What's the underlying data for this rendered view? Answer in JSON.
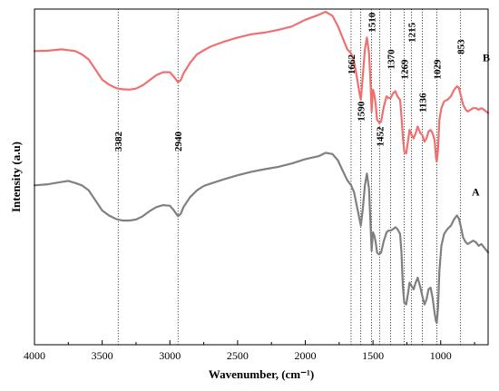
{
  "chart_data": {
    "type": "line",
    "xlabel": "Wavenumber, (cm⁻¹)",
    "ylabel": "Intensity (a.u)",
    "xlim": [
      4000,
      650
    ],
    "x_reversed": true,
    "ylim": [
      0,
      100
    ],
    "x_ticks": [
      "4000",
      "3500",
      "3000",
      "2500",
      "2000",
      "1500",
      "1000"
    ],
    "x_tick_values": [
      4000,
      3500,
      3000,
      2500,
      2000,
      1500,
      1000
    ],
    "y_ticks_shown": false,
    "grid": false,
    "reference_lines": [
      3382,
      2940,
      1662,
      1590,
      1510,
      1452,
      1370,
      1269,
      1215,
      1136,
      1029,
      853
    ],
    "series": [
      {
        "name": "B",
        "color": "#f07070",
        "points": [
          [
            4000,
            87.5
          ],
          [
            3900,
            87.6
          ],
          [
            3800,
            88.0
          ],
          [
            3700,
            87.5
          ],
          [
            3650,
            86.5
          ],
          [
            3600,
            85.0
          ],
          [
            3550,
            82.0
          ],
          [
            3500,
            79.0
          ],
          [
            3450,
            77.5
          ],
          [
            3400,
            76.5
          ],
          [
            3382,
            76.3
          ],
          [
            3350,
            76.1
          ],
          [
            3300,
            76.0
          ],
          [
            3250,
            76.3
          ],
          [
            3200,
            77.3
          ],
          [
            3150,
            78.8
          ],
          [
            3100,
            80.3
          ],
          [
            3050,
            81.2
          ],
          [
            3000,
            81.2
          ],
          [
            2970,
            79.8
          ],
          [
            2940,
            78.2
          ],
          [
            2920,
            78.8
          ],
          [
            2900,
            80.8
          ],
          [
            2850,
            84.0
          ],
          [
            2800,
            86.5
          ],
          [
            2750,
            87.7
          ],
          [
            2700,
            88.8
          ],
          [
            2600,
            90.3
          ],
          [
            2500,
            91.5
          ],
          [
            2400,
            92.5
          ],
          [
            2300,
            93.0
          ],
          [
            2200,
            93.8
          ],
          [
            2100,
            94.8
          ],
          [
            2000,
            96.8
          ],
          [
            1900,
            98.3
          ],
          [
            1850,
            99.2
          ],
          [
            1800,
            98.0
          ],
          [
            1760,
            95.0
          ],
          [
            1720,
            91.0
          ],
          [
            1690,
            88.0
          ],
          [
            1662,
            86.8
          ],
          [
            1640,
            84.5
          ],
          [
            1620,
            80.0
          ],
          [
            1600,
            75.0
          ],
          [
            1590,
            73.0
          ],
          [
            1575,
            80.0
          ],
          [
            1560,
            88.0
          ],
          [
            1545,
            91.5
          ],
          [
            1530,
            87.0
          ],
          [
            1520,
            80.0
          ],
          [
            1510,
            69.5
          ],
          [
            1500,
            76.0
          ],
          [
            1490,
            74.5
          ],
          [
            1480,
            71.5
          ],
          [
            1470,
            67.0
          ],
          [
            1460,
            66.5
          ],
          [
            1452,
            66.0
          ],
          [
            1440,
            66.5
          ],
          [
            1420,
            71.0
          ],
          [
            1400,
            74.0
          ],
          [
            1385,
            73.5
          ],
          [
            1370,
            73.5
          ],
          [
            1350,
            75.0
          ],
          [
            1335,
            75.5
          ],
          [
            1320,
            74.0
          ],
          [
            1300,
            73.0
          ],
          [
            1290,
            68.0
          ],
          [
            1280,
            62.0
          ],
          [
            1269,
            57.5
          ],
          [
            1255,
            57.0
          ],
          [
            1240,
            61.0
          ],
          [
            1230,
            64.0
          ],
          [
            1215,
            62.5
          ],
          [
            1200,
            61.5
          ],
          [
            1185,
            63.0
          ],
          [
            1170,
            65.0
          ],
          [
            1150,
            63.0
          ],
          [
            1136,
            62.5
          ],
          [
            1120,
            60.5
          ],
          [
            1105,
            61.5
          ],
          [
            1090,
            63.5
          ],
          [
            1075,
            64.0
          ],
          [
            1060,
            63.0
          ],
          [
            1045,
            61.0
          ],
          [
            1035,
            56.0
          ],
          [
            1029,
            54.5
          ],
          [
            1020,
            58.0
          ],
          [
            1010,
            67.0
          ],
          [
            995,
            70.5
          ],
          [
            975,
            72.5
          ],
          [
            950,
            73.0
          ],
          [
            925,
            74.0
          ],
          [
            900,
            76.0
          ],
          [
            880,
            77.0
          ],
          [
            865,
            76.5
          ],
          [
            853,
            74.5
          ],
          [
            835,
            71.5
          ],
          [
            815,
            70.0
          ],
          [
            800,
            69.5
          ],
          [
            780,
            70.0
          ],
          [
            760,
            70.5
          ],
          [
            740,
            70.5
          ],
          [
            720,
            70.0
          ],
          [
            700,
            70.5
          ],
          [
            680,
            70.0
          ],
          [
            650,
            69.0
          ]
        ]
      },
      {
        "name": "A",
        "color": "#808080",
        "points": [
          [
            4000,
            47.5
          ],
          [
            3900,
            47.8
          ],
          [
            3800,
            48.5
          ],
          [
            3750,
            48.8
          ],
          [
            3700,
            48.2
          ],
          [
            3650,
            47.5
          ],
          [
            3600,
            46.0
          ],
          [
            3550,
            43.0
          ],
          [
            3500,
            40.0
          ],
          [
            3450,
            38.5
          ],
          [
            3400,
            37.5
          ],
          [
            3382,
            37.3
          ],
          [
            3350,
            37.0
          ],
          [
            3300,
            37.0
          ],
          [
            3250,
            37.3
          ],
          [
            3200,
            38.3
          ],
          [
            3150,
            39.8
          ],
          [
            3100,
            41.0
          ],
          [
            3050,
            41.6
          ],
          [
            3000,
            41.4
          ],
          [
            2970,
            40.0
          ],
          [
            2940,
            38.3
          ],
          [
            2920,
            39.0
          ],
          [
            2900,
            41.0
          ],
          [
            2850,
            44.0
          ],
          [
            2800,
            46.0
          ],
          [
            2750,
            47.3
          ],
          [
            2700,
            48.0
          ],
          [
            2600,
            49.3
          ],
          [
            2500,
            50.5
          ],
          [
            2400,
            51.5
          ],
          [
            2300,
            52.3
          ],
          [
            2200,
            53.0
          ],
          [
            2100,
            54.0
          ],
          [
            2000,
            55.3
          ],
          [
            1900,
            56.2
          ],
          [
            1850,
            57.2
          ],
          [
            1800,
            56.8
          ],
          [
            1760,
            55.0
          ],
          [
            1720,
            51.5
          ],
          [
            1690,
            49.0
          ],
          [
            1662,
            47.5
          ],
          [
            1640,
            45.5
          ],
          [
            1620,
            41.5
          ],
          [
            1600,
            37.5
          ],
          [
            1590,
            35.5
          ],
          [
            1575,
            40.5
          ],
          [
            1560,
            47.5
          ],
          [
            1545,
            51.0
          ],
          [
            1530,
            46.5
          ],
          [
            1520,
            38.0
          ],
          [
            1510,
            28.0
          ],
          [
            1500,
            33.5
          ],
          [
            1490,
            32.5
          ],
          [
            1480,
            30.5
          ],
          [
            1470,
            27.5
          ],
          [
            1460,
            27.0
          ],
          [
            1452,
            27.0
          ],
          [
            1440,
            27.5
          ],
          [
            1420,
            31.0
          ],
          [
            1400,
            33.5
          ],
          [
            1385,
            34.0
          ],
          [
            1370,
            34.0
          ],
          [
            1350,
            34.5
          ],
          [
            1335,
            35.0
          ],
          [
            1320,
            34.5
          ],
          [
            1300,
            33.0
          ],
          [
            1290,
            27.5
          ],
          [
            1280,
            17.5
          ],
          [
            1269,
            12.5
          ],
          [
            1255,
            12.0
          ],
          [
            1240,
            15.5
          ],
          [
            1230,
            18.5
          ],
          [
            1215,
            17.5
          ],
          [
            1200,
            16.5
          ],
          [
            1185,
            18.5
          ],
          [
            1170,
            20.0
          ],
          [
            1150,
            17.0
          ],
          [
            1136,
            14.5
          ],
          [
            1120,
            12.0
          ],
          [
            1105,
            13.5
          ],
          [
            1090,
            16.5
          ],
          [
            1075,
            17.0
          ],
          [
            1060,
            14.0
          ],
          [
            1045,
            9.5
          ],
          [
            1035,
            7.0
          ],
          [
            1029,
            6.5
          ],
          [
            1020,
            11.0
          ],
          [
            1010,
            22.0
          ],
          [
            995,
            29.5
          ],
          [
            975,
            33.0
          ],
          [
            950,
            34.5
          ],
          [
            925,
            35.5
          ],
          [
            900,
            37.5
          ],
          [
            880,
            38.5
          ],
          [
            865,
            37.5
          ],
          [
            853,
            35.5
          ],
          [
            835,
            32.0
          ],
          [
            815,
            30.5
          ],
          [
            800,
            30.0
          ],
          [
            780,
            30.5
          ],
          [
            760,
            31.0
          ],
          [
            740,
            30.5
          ],
          [
            720,
            29.5
          ],
          [
            700,
            30.0
          ],
          [
            680,
            29.0
          ],
          [
            650,
            27.5
          ]
        ]
      }
    ],
    "series_labels": [
      "B",
      "A"
    ],
    "peak_labels_B": [
      {
        "text": "1662",
        "x": 1662,
        "y": 86.5
      },
      {
        "text": "1590",
        "x": 1590,
        "y": 72.5
      },
      {
        "text": "1510",
        "x": 1510,
        "y": 99.0
      },
      {
        "text": "1452",
        "x": 1452,
        "y": 65.0
      },
      {
        "text": "1370",
        "x": 1370,
        "y": 88.0
      },
      {
        "text": "1269",
        "x": 1269,
        "y": 85.0
      },
      {
        "text": "1215",
        "x": 1215,
        "y": 96.0
      },
      {
        "text": "1136",
        "x": 1136,
        "y": 75.0
      },
      {
        "text": "1029",
        "x": 1029,
        "y": 85.0
      },
      {
        "text": "853",
        "x": 853,
        "y": 91.0
      }
    ],
    "peak_labels_mid": [
      {
        "text": "3382",
        "x": 3382,
        "y": 63.5
      },
      {
        "text": "2940",
        "x": 2940,
        "y": 63.5
      }
    ]
  }
}
